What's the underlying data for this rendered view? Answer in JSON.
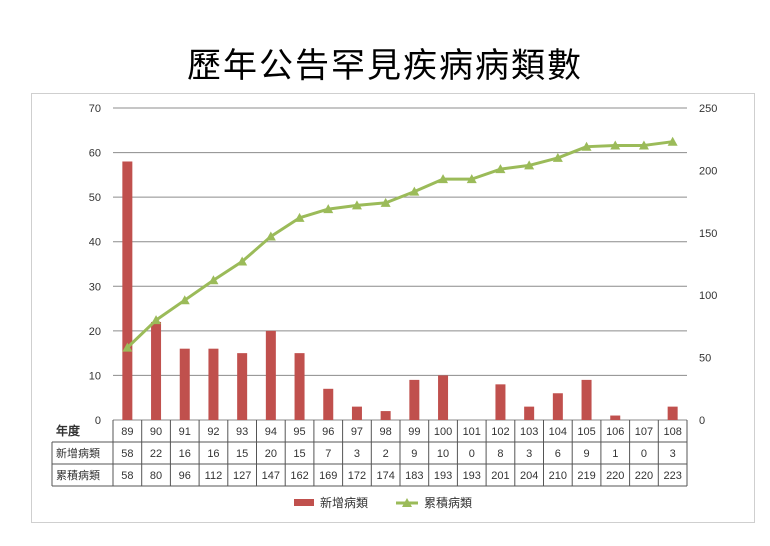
{
  "title": "歷年公告罕見疾病病類數",
  "chart_data": {
    "type": "bar+line",
    "title": "歷年公告罕見疾病病類數",
    "xlabel": "年度",
    "categories": [
      "89",
      "90",
      "91",
      "92",
      "93",
      "94",
      "95",
      "96",
      "97",
      "98",
      "99",
      "100",
      "101",
      "102",
      "103",
      "104",
      "105",
      "106",
      "107",
      "108"
    ],
    "series": [
      {
        "name": "新增病類",
        "type": "bar",
        "axis": "left",
        "color": "#c0504d",
        "values": [
          58,
          22,
          16,
          16,
          15,
          20,
          15,
          7,
          3,
          2,
          9,
          10,
          0,
          8,
          3,
          6,
          9,
          1,
          0,
          3
        ]
      },
      {
        "name": "累積病類",
        "type": "line",
        "axis": "right",
        "color": "#9bbb59",
        "marker": "triangle",
        "values": [
          58,
          80,
          96,
          112,
          127,
          147,
          162,
          169,
          172,
          174,
          183,
          193,
          193,
          201,
          204,
          210,
          219,
          220,
          220,
          223
        ]
      }
    ],
    "y_left": {
      "min": 0,
      "max": 70,
      "ticks": [
        0,
        10,
        20,
        30,
        40,
        50,
        60,
        70
      ]
    },
    "y_right": {
      "min": 0,
      "max": 250,
      "ticks": [
        0,
        50,
        100,
        150,
        200,
        250
      ]
    },
    "grid": true,
    "legend_position": "bottom",
    "data_table": true
  }
}
